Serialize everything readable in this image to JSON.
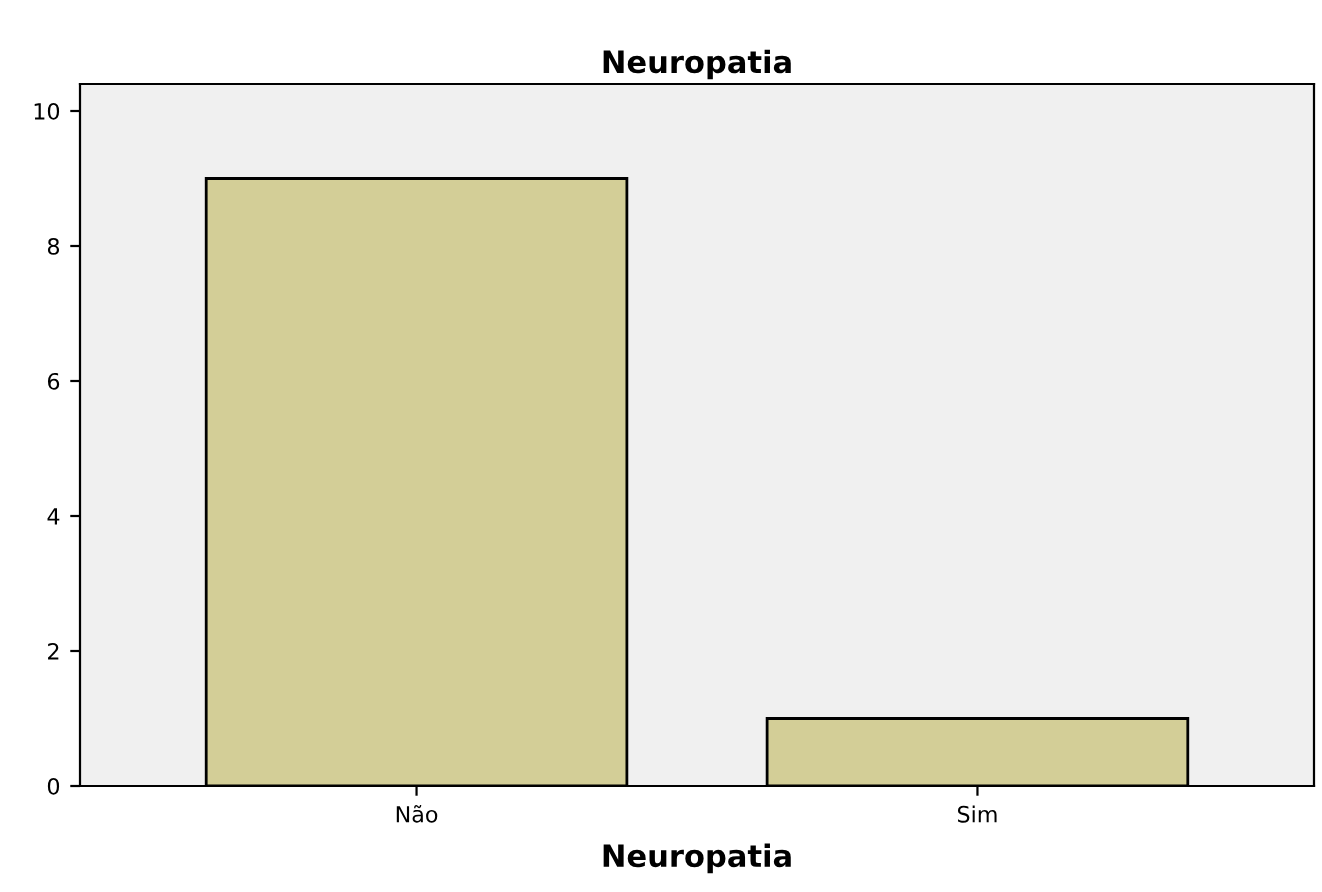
{
  "chart_data": {
    "type": "bar",
    "title": "Neuropatia",
    "xlabel": "Neuropatia",
    "categories": [
      "Não",
      "Sim"
    ],
    "values": [
      9,
      1
    ],
    "color": "#d3ce97",
    "ylim": [
      0,
      10.4
    ],
    "yticks": [
      0,
      2,
      4,
      6,
      8,
      10
    ],
    "grid": false
  }
}
